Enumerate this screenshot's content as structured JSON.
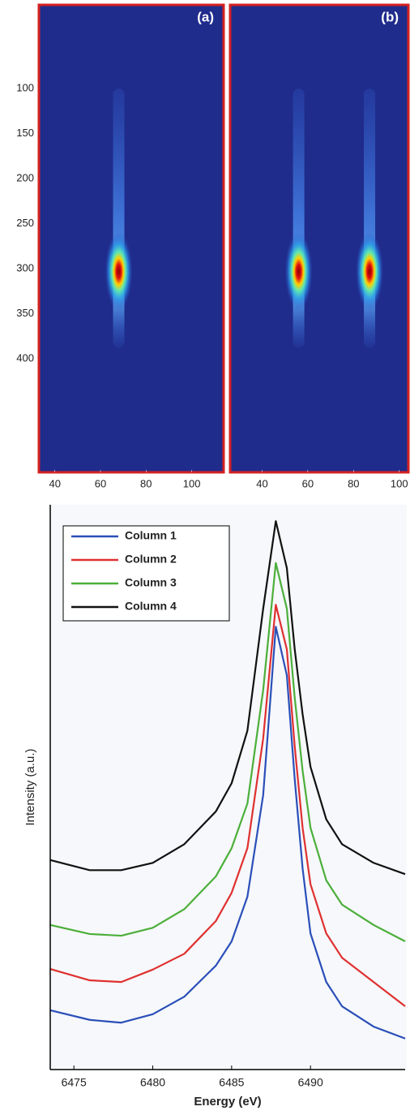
{
  "chart_data": [
    {
      "type": "heatmap",
      "ylim": [
        7,
        526
      ],
      "yticks": [
        100,
        150,
        200,
        250,
        300,
        350,
        400
      ],
      "streak": [
        100,
        388
      ],
      "panels": [
        {
          "label": "(a)",
          "xlim": [
            33,
            114
          ],
          "xticks": [
            40,
            60,
            80,
            100
          ],
          "spots": [
            {
              "x": 68,
              "y": 303
            }
          ]
        },
        {
          "label": "(b)",
          "xlim": [
            26,
            104
          ],
          "xticks": [
            40,
            60,
            80,
            100
          ],
          "spots": [
            {
              "x": 56,
              "y": 303
            },
            {
              "x": 87,
              "y": 303
            }
          ]
        }
      ]
    },
    {
      "type": "line",
      "xlabel": "Energy (eV)",
      "ylabel": "Intensity (a.u.)",
      "xlim": [
        6473.5,
        6496
      ],
      "xticks": [
        6475,
        6480,
        6485,
        6490
      ],
      "ylim": [
        0,
        100
      ],
      "legend": "upper left",
      "x": [
        6473.5,
        6476,
        6478,
        6480,
        6482,
        6484,
        6485,
        6486,
        6487,
        6487.8,
        6488.5,
        6489,
        6489.5,
        6490,
        6491,
        6492,
        6494,
        6496
      ],
      "series": [
        {
          "name": "Column 1",
          "color": "#2b4fb8",
          "values": [
            10.5,
            8.8,
            8.3,
            9.8,
            12.9,
            18.4,
            22.7,
            30.6,
            48.6,
            78.4,
            69.8,
            51.4,
            35.6,
            24.1,
            15.5,
            11.2,
            7.6,
            5.5
          ]
        },
        {
          "name": "Column 2",
          "color": "#e03030",
          "values": [
            17.8,
            15.8,
            15.5,
            17.7,
            20.5,
            26.3,
            31.3,
            39.2,
            58.6,
            82.3,
            74.4,
            57.2,
            42.8,
            32.8,
            24.1,
            19.8,
            15.5,
            11.2
          ]
        },
        {
          "name": "Column 3",
          "color": "#4caf3a",
          "values": [
            25.6,
            24.0,
            23.7,
            25.1,
            28.4,
            34.2,
            39.2,
            47.1,
            67.2,
            89.7,
            81.6,
            65.8,
            52.9,
            42.8,
            33.5,
            29.2,
            25.6,
            22.7
          ]
        },
        {
          "name": "Column 4",
          "color": "#111111",
          "values": [
            37.1,
            35.3,
            35.3,
            36.6,
            39.9,
            45.7,
            50.7,
            60.0,
            81.6,
            97.1,
            88.8,
            74.4,
            62.9,
            53.6,
            44.3,
            39.9,
            36.6,
            34.6
          ]
        }
      ]
    }
  ]
}
